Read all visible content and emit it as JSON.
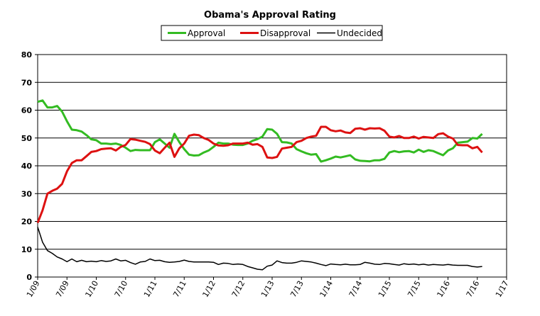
{
  "chart_data": {
    "type": "line",
    "title": "Obama's Approval Rating",
    "ylim": [
      0,
      80
    ],
    "y_ticks": [
      "0",
      "10",
      "20",
      "30",
      "40",
      "50",
      "60",
      "70",
      "80"
    ],
    "x_ticks": [
      "1/09",
      "7/09",
      "1/10",
      "7/10",
      "1/11",
      "7/11",
      "1/12",
      "7/12",
      "1/13",
      "7/13",
      "1/14",
      "7/14",
      "1/15",
      "7/15",
      "1/16",
      "7/16",
      "1/17"
    ],
    "x_unit": "month index from 1/09",
    "grid": "horizontal",
    "legend_position": "top-center",
    "colors": {
      "Approval": "#33bb22",
      "Disapproval": "#dd1111",
      "Undecided": "#000000"
    },
    "series": [
      {
        "name": "Approval",
        "points": [
          [
            0,
            63
          ],
          [
            1,
            63.5
          ],
          [
            2,
            61
          ],
          [
            3,
            61
          ],
          [
            4,
            61.5
          ],
          [
            5,
            59.5
          ],
          [
            6,
            56
          ],
          [
            7,
            53
          ],
          [
            8,
            52.8
          ],
          [
            9,
            52.3
          ],
          [
            10,
            51
          ],
          [
            11,
            49.5
          ],
          [
            12,
            49.2
          ],
          [
            13,
            48
          ],
          [
            14,
            48
          ],
          [
            15,
            47.8
          ],
          [
            16,
            48
          ],
          [
            17,
            47.5
          ],
          [
            18,
            46.5
          ],
          [
            19,
            45.3
          ],
          [
            20,
            45.7
          ],
          [
            21,
            45.6
          ],
          [
            22,
            45.6
          ],
          [
            23,
            45.6
          ],
          [
            24,
            48.5
          ],
          [
            25,
            49.5
          ],
          [
            26,
            48
          ],
          [
            27,
            46.5
          ],
          [
            28,
            51.5
          ],
          [
            29,
            48.5
          ],
          [
            30,
            46
          ],
          [
            31,
            44
          ],
          [
            32,
            43.7
          ],
          [
            33,
            43.8
          ],
          [
            34,
            44.8
          ],
          [
            35,
            45.5
          ],
          [
            36,
            46.8
          ],
          [
            37,
            48.3
          ],
          [
            38,
            48
          ],
          [
            39,
            48
          ],
          [
            40,
            47.6
          ],
          [
            41,
            47.5
          ],
          [
            42,
            47.5
          ],
          [
            43,
            48
          ],
          [
            44,
            49
          ],
          [
            45,
            49.6
          ],
          [
            46,
            50.5
          ],
          [
            47,
            53.2
          ],
          [
            48,
            53
          ],
          [
            49,
            51.5
          ],
          [
            50,
            48.5
          ],
          [
            51,
            48.4
          ],
          [
            52,
            48
          ],
          [
            53,
            46
          ],
          [
            54,
            45.2
          ],
          [
            55,
            44.5
          ],
          [
            56,
            44
          ],
          [
            57,
            44.2
          ],
          [
            58,
            41.5
          ],
          [
            59,
            42
          ],
          [
            60,
            42.6
          ],
          [
            61,
            43.3
          ],
          [
            62,
            43
          ],
          [
            63,
            43.4
          ],
          [
            64,
            43.8
          ],
          [
            65,
            42.3
          ],
          [
            66,
            41.8
          ],
          [
            67,
            41.7
          ],
          [
            68,
            41.6
          ],
          [
            69,
            42
          ],
          [
            70,
            42
          ],
          [
            71,
            42.5
          ],
          [
            72,
            44.8
          ],
          [
            73,
            45.3
          ],
          [
            74,
            44.9
          ],
          [
            75,
            45.2
          ],
          [
            76,
            45.3
          ],
          [
            77,
            44.8
          ],
          [
            78,
            45.8
          ],
          [
            79,
            45
          ],
          [
            80,
            45.6
          ],
          [
            81,
            45.3
          ],
          [
            82,
            44.5
          ],
          [
            83,
            43.8
          ],
          [
            84,
            45.5
          ],
          [
            85,
            46.3
          ],
          [
            86,
            48.3
          ],
          [
            87,
            48.5
          ],
          [
            88,
            48.7
          ],
          [
            89,
            50
          ],
          [
            90,
            49.8
          ],
          [
            91,
            51.5
          ]
        ]
      },
      {
        "name": "Disapproval",
        "points": [
          [
            0,
            19.5
          ],
          [
            1,
            24
          ],
          [
            2,
            30
          ],
          [
            3,
            31
          ],
          [
            4,
            31.8
          ],
          [
            5,
            33.5
          ],
          [
            6,
            38
          ],
          [
            7,
            41
          ],
          [
            8,
            42
          ],
          [
            9,
            42
          ],
          [
            10,
            43.5
          ],
          [
            11,
            45
          ],
          [
            12,
            45.3
          ],
          [
            13,
            46
          ],
          [
            14,
            46.2
          ],
          [
            15,
            46.3
          ],
          [
            16,
            45.5
          ],
          [
            17,
            46.8
          ],
          [
            18,
            47.5
          ],
          [
            19,
            49.6
          ],
          [
            20,
            49.4
          ],
          [
            21,
            49
          ],
          [
            22,
            48.6
          ],
          [
            23,
            47.8
          ],
          [
            24,
            45.5
          ],
          [
            25,
            44.5
          ],
          [
            26,
            46.5
          ],
          [
            27,
            48.3
          ],
          [
            28,
            43.2
          ],
          [
            29,
            46.3
          ],
          [
            30,
            48
          ],
          [
            31,
            50.8
          ],
          [
            32,
            51.2
          ],
          [
            33,
            51
          ],
          [
            34,
            50
          ],
          [
            35,
            49.3
          ],
          [
            36,
            48
          ],
          [
            37,
            47.3
          ],
          [
            38,
            47.2
          ],
          [
            39,
            47.4
          ],
          [
            40,
            48
          ],
          [
            41,
            48
          ],
          [
            42,
            48
          ],
          [
            43,
            48.3
          ],
          [
            44,
            47.6
          ],
          [
            45,
            47.8
          ],
          [
            46,
            46.8
          ],
          [
            47,
            43
          ],
          [
            48,
            42.8
          ],
          [
            49,
            43.2
          ],
          [
            50,
            46.2
          ],
          [
            51,
            46.5
          ],
          [
            52,
            46.8
          ],
          [
            53,
            48.5
          ],
          [
            54,
            49
          ],
          [
            55,
            50
          ],
          [
            56,
            50.5
          ],
          [
            57,
            50.8
          ],
          [
            58,
            54
          ],
          [
            59,
            54
          ],
          [
            60,
            52.8
          ],
          [
            61,
            52.4
          ],
          [
            62,
            52.7
          ],
          [
            63,
            52
          ],
          [
            64,
            51.8
          ],
          [
            65,
            53.3
          ],
          [
            66,
            53.5
          ],
          [
            67,
            53
          ],
          [
            68,
            53.5
          ],
          [
            69,
            53.4
          ],
          [
            70,
            53.5
          ],
          [
            71,
            52.6
          ],
          [
            72,
            50.5
          ],
          [
            73,
            50.2
          ],
          [
            74,
            50.7
          ],
          [
            75,
            50
          ],
          [
            76,
            50
          ],
          [
            77,
            50.5
          ],
          [
            78,
            49.8
          ],
          [
            79,
            50.4
          ],
          [
            80,
            50.2
          ],
          [
            81,
            50
          ],
          [
            82,
            51.4
          ],
          [
            83,
            51.7
          ],
          [
            84,
            50.5
          ],
          [
            85,
            49.8
          ],
          [
            86,
            47.5
          ],
          [
            87,
            47.4
          ],
          [
            88,
            47.4
          ],
          [
            89,
            46.3
          ],
          [
            90,
            46.8
          ],
          [
            91,
            44.8
          ]
        ]
      },
      {
        "name": "Undecided",
        "points": [
          [
            0,
            18
          ],
          [
            1,
            12.5
          ],
          [
            2,
            9.5
          ],
          [
            3,
            8.5
          ],
          [
            4,
            7.2
          ],
          [
            5,
            6.5
          ],
          [
            6,
            5.5
          ],
          [
            7,
            6.5
          ],
          [
            8,
            5.5
          ],
          [
            9,
            6
          ],
          [
            10,
            5.5
          ],
          [
            11,
            5.7
          ],
          [
            12,
            5.5
          ],
          [
            13,
            5.9
          ],
          [
            14,
            5.6
          ],
          [
            15,
            5.8
          ],
          [
            16,
            6.5
          ],
          [
            17,
            5.8
          ],
          [
            18,
            6
          ],
          [
            19,
            5.2
          ],
          [
            20,
            4.6
          ],
          [
            21,
            5.4
          ],
          [
            22,
            5.6
          ],
          [
            23,
            6.5
          ],
          [
            24,
            5.9
          ],
          [
            25,
            6
          ],
          [
            26,
            5.5
          ],
          [
            27,
            5.3
          ],
          [
            28,
            5.4
          ],
          [
            29,
            5.6
          ],
          [
            30,
            6.1
          ],
          [
            31,
            5.6
          ],
          [
            32,
            5.4
          ],
          [
            33,
            5.4
          ],
          [
            34,
            5.4
          ],
          [
            35,
            5.4
          ],
          [
            36,
            5.3
          ],
          [
            37,
            4.5
          ],
          [
            38,
            5
          ],
          [
            39,
            4.9
          ],
          [
            40,
            4.5
          ],
          [
            41,
            4.7
          ],
          [
            42,
            4.5
          ],
          [
            43,
            3.8
          ],
          [
            44,
            3.3
          ],
          [
            45,
            2.8
          ],
          [
            46,
            2.6
          ],
          [
            47,
            3.9
          ],
          [
            48,
            4.3
          ],
          [
            49,
            5.8
          ],
          [
            50,
            5.2
          ],
          [
            51,
            5
          ],
          [
            52,
            5
          ],
          [
            53,
            5.3
          ],
          [
            54,
            5.8
          ],
          [
            55,
            5.6
          ],
          [
            56,
            5.4
          ],
          [
            57,
            5
          ],
          [
            58,
            4.5
          ],
          [
            59,
            4.1
          ],
          [
            60,
            4.7
          ],
          [
            61,
            4.5
          ],
          [
            62,
            4.4
          ],
          [
            63,
            4.6
          ],
          [
            64,
            4.4
          ],
          [
            65,
            4.4
          ],
          [
            66,
            4.5
          ],
          [
            67,
            5.3
          ],
          [
            68,
            5
          ],
          [
            69,
            4.6
          ],
          [
            70,
            4.5
          ],
          [
            71,
            4.9
          ],
          [
            72,
            4.8
          ],
          [
            73,
            4.5
          ],
          [
            74,
            4.3
          ],
          [
            75,
            4.8
          ],
          [
            76,
            4.5
          ],
          [
            77,
            4.7
          ],
          [
            78,
            4.4
          ],
          [
            79,
            4.6
          ],
          [
            80,
            4.3
          ],
          [
            81,
            4.5
          ],
          [
            82,
            4.4
          ],
          [
            83,
            4.3
          ],
          [
            84,
            4.5
          ],
          [
            85,
            4.3
          ],
          [
            86,
            4.2
          ],
          [
            87,
            4.2
          ],
          [
            88,
            4.2
          ],
          [
            89,
            3.8
          ],
          [
            90,
            3.6
          ],
          [
            91,
            3.8
          ]
        ]
      }
    ]
  }
}
